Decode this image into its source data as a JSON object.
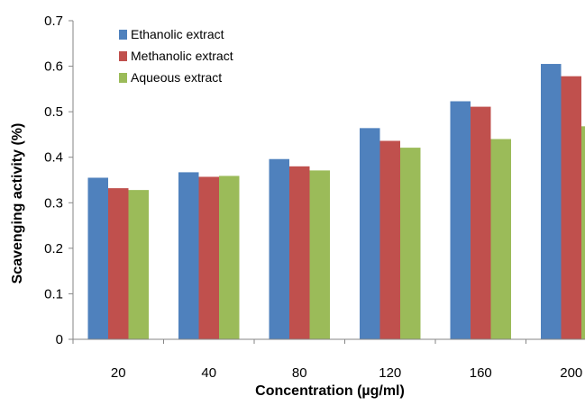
{
  "chart_data": {
    "type": "bar",
    "title": "",
    "xlabel": "Concentration (µg/ml)",
    "ylabel": "Scavenging activity (%)",
    "categories": [
      "20",
      "40",
      "80",
      "120",
      "160",
      "200"
    ],
    "ylim": [
      0,
      0.7
    ],
    "yticks": [
      "0",
      "0.1",
      "0.2",
      "0.3",
      "0.4",
      "0.5",
      "0.6",
      "0.7"
    ],
    "grid": false,
    "legend_position": "top-left",
    "series": [
      {
        "name": "Ethanolic extract",
        "color": "#4F81BD",
        "values": [
          0.355,
          0.367,
          0.396,
          0.464,
          0.523,
          0.605
        ]
      },
      {
        "name": "Methanolic extract",
        "color": "#C0504D",
        "values": [
          0.332,
          0.357,
          0.38,
          0.436,
          0.511,
          0.578
        ]
      },
      {
        "name": "Aqueous extract",
        "color": "#9BBB59",
        "values": [
          0.328,
          0.359,
          0.371,
          0.421,
          0.44,
          0.468
        ]
      }
    ]
  }
}
